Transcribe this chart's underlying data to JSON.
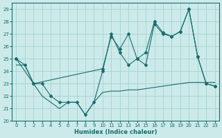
{
  "background_color": "#cceaea",
  "grid_color": "#aad4d4",
  "line_color": "#1a6b6b",
  "xlim": [
    -0.5,
    23.5
  ],
  "ylim": [
    20,
    29.5
  ],
  "yticks": [
    20,
    21,
    22,
    23,
    24,
    25,
    26,
    27,
    28,
    29
  ],
  "xticks": [
    0,
    1,
    2,
    3,
    4,
    5,
    6,
    7,
    8,
    9,
    10,
    11,
    12,
    13,
    14,
    15,
    16,
    17,
    18,
    19,
    20,
    21,
    22,
    23
  ],
  "xlabel": "Humidex (Indice chaleur)",
  "line_zigzag_x": [
    0,
    1,
    2,
    3,
    4,
    5,
    6,
    7,
    8,
    9,
    10,
    11,
    12,
    13,
    14,
    15,
    16,
    17,
    18,
    19,
    20,
    21,
    22,
    23
  ],
  "line_zigzag_y": [
    25.0,
    24.5,
    23.0,
    23.0,
    22.0,
    21.5,
    21.5,
    21.5,
    20.5,
    21.5,
    24.0,
    27.0,
    25.5,
    24.5,
    25.0,
    24.5,
    27.8,
    27.0,
    26.8,
    27.2,
    29.0,
    25.2,
    23.0,
    22.8
  ],
  "line_trend_x": [
    0,
    2,
    10,
    11,
    12,
    13,
    14,
    15,
    16,
    17,
    18,
    19,
    20,
    21,
    22,
    23
  ],
  "line_trend_y": [
    25.0,
    23.0,
    24.2,
    26.8,
    25.8,
    27.0,
    25.0,
    25.5,
    28.0,
    27.1,
    26.8,
    27.2,
    29.0,
    25.2,
    23.0,
    22.8
  ],
  "line_low_x": [
    0,
    1,
    2,
    3,
    4,
    5,
    6,
    7,
    8,
    9,
    10,
    11,
    12,
    13,
    14,
    15,
    16,
    17,
    18,
    19,
    20,
    21,
    22,
    23
  ],
  "line_low_y": [
    24.5,
    24.5,
    23.0,
    22.0,
    21.5,
    21.0,
    21.5,
    21.5,
    20.5,
    21.5,
    22.3,
    22.4,
    22.4,
    22.5,
    22.5,
    22.6,
    22.7,
    22.8,
    22.9,
    23.0,
    23.1,
    23.1,
    23.1,
    23.1
  ]
}
